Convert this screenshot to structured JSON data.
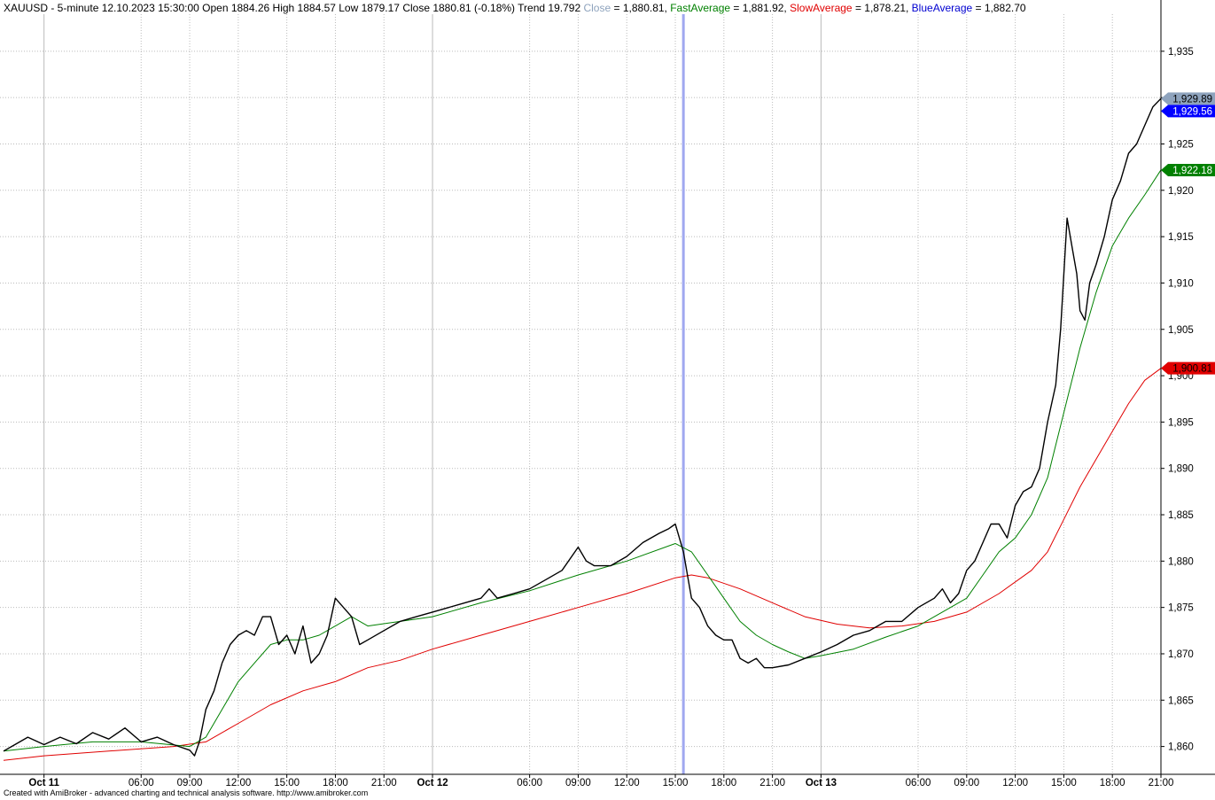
{
  "header": {
    "title": "XAUUSD - 5-minute 12.10.2023 15:30:00 Open 1884.26 High 1884.57 Low 1879.17 Close 1880.81 (-0.18%) Trend 19.792",
    "items": [
      {
        "label": "Close",
        "value": " = 1,880.81, ",
        "color": "#8ea3bd"
      },
      {
        "label": "FastAverage",
        "value": " = 1,881.92, ",
        "color": "#008000"
      },
      {
        "label": "SlowAverage",
        "value": " = 1,878.21, ",
        "color": "#e00000"
      },
      {
        "label": "BlueAverage",
        "value": " = 1,882.70",
        "color": "#0000d0"
      }
    ]
  },
  "footer": "Created with AmiBroker - advanced charting and technical analysis software. http://www.amibroker.com",
  "colors": {
    "price": "#000000",
    "fast": "#008000",
    "slow": "#e00000",
    "blue": "#0000ff",
    "cursor": "#a0a8f0",
    "grid": "#bbbbbb"
  },
  "chart_data": {
    "type": "line",
    "title": "XAUUSD - 5-minute",
    "ylim": [
      1857,
      1939
    ],
    "y_ticks": [
      {
        "value": 1860,
        "label": "1,860"
      },
      {
        "value": 1865,
        "label": "1,865"
      },
      {
        "value": 1870,
        "label": "1,870"
      },
      {
        "value": 1875,
        "label": "1,875"
      },
      {
        "value": 1880,
        "label": "1,880"
      },
      {
        "value": 1885,
        "label": "1,885"
      },
      {
        "value": 1890,
        "label": "1,890"
      },
      {
        "value": 1895,
        "label": "1,895"
      },
      {
        "value": 1900,
        "label": "1,900"
      },
      {
        "value": 1905,
        "label": "1,905"
      },
      {
        "value": 1910,
        "label": "1,910"
      },
      {
        "value": 1915,
        "label": "1,915"
      },
      {
        "value": 1920,
        "label": "1,920"
      },
      {
        "value": 1925,
        "label": "1,925"
      },
      {
        "value": 1930,
        "label": "1,930"
      },
      {
        "value": 1935,
        "label": "1,935"
      }
    ],
    "x_ticks": [
      {
        "hour": 0,
        "label": "Oct 11",
        "bold": true
      },
      {
        "hour": 6,
        "label": "06:00",
        "bold": false
      },
      {
        "hour": 9,
        "label": "09:00",
        "bold": false
      },
      {
        "hour": 12,
        "label": "12:00",
        "bold": false
      },
      {
        "hour": 15,
        "label": "15:00",
        "bold": false
      },
      {
        "hour": 18,
        "label": "18:00",
        "bold": false
      },
      {
        "hour": 21,
        "label": "21:00",
        "bold": false
      },
      {
        "hour": 24,
        "label": "Oct 12",
        "bold": true
      },
      {
        "hour": 30,
        "label": "06:00",
        "bold": false
      },
      {
        "hour": 33,
        "label": "09:00",
        "bold": false
      },
      {
        "hour": 36,
        "label": "12:00",
        "bold": false
      },
      {
        "hour": 39,
        "label": "15:00",
        "bold": false
      },
      {
        "hour": 42,
        "label": "18:00",
        "bold": false
      },
      {
        "hour": 45,
        "label": "21:00",
        "bold": false
      },
      {
        "hour": 48,
        "label": "Oct 13",
        "bold": true
      },
      {
        "hour": 54,
        "label": "06:00",
        "bold": false
      },
      {
        "hour": 57,
        "label": "09:00",
        "bold": false
      },
      {
        "hour": 60,
        "label": "12:00",
        "bold": false
      },
      {
        "hour": 63,
        "label": "15:00",
        "bold": false
      },
      {
        "hour": 66,
        "label": "18:00",
        "bold": false
      },
      {
        "hour": 69,
        "label": "21:00",
        "bold": false
      }
    ],
    "cursor_hour": 39.5,
    "x_range_hours": [
      -2.5,
      69
    ],
    "series": [
      {
        "key": "price",
        "points": [
          [
            -2.5,
            1859.5
          ],
          [
            -2,
            1860
          ],
          [
            -1,
            1861
          ],
          [
            0,
            1860.2
          ],
          [
            1,
            1861
          ],
          [
            2,
            1860.3
          ],
          [
            3,
            1861.5
          ],
          [
            4,
            1860.8
          ],
          [
            5,
            1862
          ],
          [
            6,
            1860.5
          ],
          [
            7,
            1861
          ],
          [
            8,
            1860.2
          ],
          [
            9,
            1859.6
          ],
          [
            9.3,
            1859
          ],
          [
            9.6,
            1860.5
          ],
          [
            10,
            1864
          ],
          [
            10.5,
            1866
          ],
          [
            11,
            1869
          ],
          [
            11.5,
            1871
          ],
          [
            12,
            1872
          ],
          [
            12.5,
            1872.5
          ],
          [
            13,
            1872
          ],
          [
            13.5,
            1874
          ],
          [
            14,
            1874
          ],
          [
            14.5,
            1871
          ],
          [
            15,
            1872
          ],
          [
            15.5,
            1870
          ],
          [
            16,
            1873
          ],
          [
            16.5,
            1869
          ],
          [
            17,
            1870
          ],
          [
            17.5,
            1872
          ],
          [
            18,
            1876
          ],
          [
            18.5,
            1875
          ],
          [
            19,
            1874
          ],
          [
            19.5,
            1871
          ],
          [
            20,
            1871.5
          ],
          [
            21,
            1872.5
          ],
          [
            22,
            1873.5
          ],
          [
            23,
            1874
          ],
          [
            24,
            1874.5
          ],
          [
            25,
            1875
          ],
          [
            26,
            1875.5
          ],
          [
            27,
            1876
          ],
          [
            27.5,
            1877
          ],
          [
            28,
            1876
          ],
          [
            29,
            1876.5
          ],
          [
            30,
            1877
          ],
          [
            31,
            1878
          ],
          [
            32,
            1879
          ],
          [
            33,
            1881.5
          ],
          [
            33.5,
            1880
          ],
          [
            34,
            1879.5
          ],
          [
            35,
            1879.5
          ],
          [
            36,
            1880.5
          ],
          [
            37,
            1882
          ],
          [
            38,
            1883
          ],
          [
            38.6,
            1883.5
          ],
          [
            39,
            1884
          ],
          [
            39.5,
            1881
          ],
          [
            39.8,
            1878
          ],
          [
            40,
            1876
          ],
          [
            40.5,
            1875
          ],
          [
            41,
            1873
          ],
          [
            41.5,
            1872
          ],
          [
            42,
            1871.5
          ],
          [
            42.5,
            1871.5
          ],
          [
            43,
            1869.5
          ],
          [
            43.5,
            1869
          ],
          [
            44,
            1869.5
          ],
          [
            44.5,
            1868.5
          ],
          [
            45,
            1868.5
          ],
          [
            46,
            1868.8
          ],
          [
            47,
            1869.5
          ],
          [
            48,
            1870.2
          ],
          [
            49,
            1871
          ],
          [
            50,
            1872
          ],
          [
            51,
            1872.5
          ],
          [
            52,
            1873.5
          ],
          [
            53,
            1873.5
          ],
          [
            54,
            1875
          ],
          [
            55,
            1876
          ],
          [
            55.5,
            1877
          ],
          [
            56,
            1875.5
          ],
          [
            56.5,
            1876.5
          ],
          [
            57,
            1879
          ],
          [
            57.5,
            1880
          ],
          [
            58,
            1882
          ],
          [
            58.5,
            1884
          ],
          [
            59,
            1884
          ],
          [
            59.5,
            1882.5
          ],
          [
            60,
            1886
          ],
          [
            60.5,
            1887.5
          ],
          [
            61,
            1888
          ],
          [
            61.5,
            1890
          ],
          [
            62,
            1895
          ],
          [
            62.5,
            1899
          ],
          [
            62.8,
            1905
          ],
          [
            63.2,
            1917
          ],
          [
            63.5,
            1914
          ],
          [
            63.8,
            1911
          ],
          [
            64,
            1907
          ],
          [
            64.3,
            1906
          ],
          [
            64.6,
            1910
          ],
          [
            65,
            1912
          ],
          [
            65.5,
            1915
          ],
          [
            66,
            1919
          ],
          [
            66.5,
            1921
          ],
          [
            67,
            1924
          ],
          [
            67.5,
            1925
          ],
          [
            68,
            1927
          ],
          [
            68.5,
            1929
          ],
          [
            69,
            1929.9
          ]
        ]
      },
      {
        "key": "fast",
        "points": [
          [
            -2.5,
            1859.5
          ],
          [
            0,
            1860
          ],
          [
            3,
            1860.5
          ],
          [
            6,
            1860.5
          ],
          [
            9,
            1860
          ],
          [
            10,
            1861
          ],
          [
            11,
            1864
          ],
          [
            12,
            1867
          ],
          [
            13,
            1869
          ],
          [
            14,
            1871
          ],
          [
            15,
            1871.5
          ],
          [
            16,
            1871.5
          ],
          [
            17,
            1872
          ],
          [
            18,
            1873
          ],
          [
            19,
            1874
          ],
          [
            20,
            1873
          ],
          [
            22,
            1873.5
          ],
          [
            24,
            1874
          ],
          [
            27,
            1875.5
          ],
          [
            30,
            1876.8
          ],
          [
            33,
            1878.5
          ],
          [
            36,
            1880
          ],
          [
            39,
            1881.9
          ],
          [
            40,
            1881
          ],
          [
            41,
            1878.5
          ],
          [
            42,
            1876
          ],
          [
            43,
            1873.5
          ],
          [
            44,
            1872
          ],
          [
            45,
            1871
          ],
          [
            46,
            1870.2
          ],
          [
            47,
            1869.5
          ],
          [
            48,
            1869.8
          ],
          [
            50,
            1870.5
          ],
          [
            52,
            1871.8
          ],
          [
            54,
            1873
          ],
          [
            55,
            1874
          ],
          [
            56,
            1875
          ],
          [
            57,
            1876
          ],
          [
            58,
            1878.5
          ],
          [
            59,
            1881
          ],
          [
            60,
            1882.5
          ],
          [
            61,
            1885
          ],
          [
            62,
            1889
          ],
          [
            63,
            1896
          ],
          [
            64,
            1903
          ],
          [
            65,
            1909
          ],
          [
            66,
            1914
          ],
          [
            67,
            1917
          ],
          [
            68,
            1919.5
          ],
          [
            69,
            1922.2
          ]
        ]
      },
      {
        "key": "slow",
        "points": [
          [
            -2.5,
            1858.5
          ],
          [
            0,
            1859
          ],
          [
            4,
            1859.5
          ],
          [
            8,
            1860
          ],
          [
            10,
            1860.5
          ],
          [
            12,
            1862.5
          ],
          [
            14,
            1864.5
          ],
          [
            16,
            1866
          ],
          [
            18,
            1867
          ],
          [
            20,
            1868.5
          ],
          [
            22,
            1869.3
          ],
          [
            24,
            1870.5
          ],
          [
            27,
            1872
          ],
          [
            30,
            1873.5
          ],
          [
            33,
            1875
          ],
          [
            36,
            1876.5
          ],
          [
            39,
            1878.2
          ],
          [
            40,
            1878.5
          ],
          [
            41,
            1878.2
          ],
          [
            43,
            1877
          ],
          [
            45,
            1875.5
          ],
          [
            47,
            1874
          ],
          [
            49,
            1873.2
          ],
          [
            51,
            1872.8
          ],
          [
            53,
            1873
          ],
          [
            55,
            1873.5
          ],
          [
            57,
            1874.5
          ],
          [
            59,
            1876.5
          ],
          [
            61,
            1879
          ],
          [
            62,
            1881
          ],
          [
            63,
            1884.5
          ],
          [
            64,
            1888
          ],
          [
            65,
            1891
          ],
          [
            66,
            1894
          ],
          [
            67,
            1897
          ],
          [
            68,
            1899.5
          ],
          [
            69,
            1900.8
          ]
        ]
      }
    ],
    "last_values": [
      {
        "key": "close",
        "value": 1929.89,
        "label": "1,929.89",
        "bg": "#8ea3bd",
        "fg": "#000000"
      },
      {
        "key": "blue",
        "value": 1929.56,
        "label": "1,929.56",
        "bg": "#0000ff",
        "fg": "#ffffff"
      },
      {
        "key": "fast",
        "value": 1922.18,
        "label": "1,922.18",
        "bg": "#008000",
        "fg": "#ffffff"
      },
      {
        "key": "slow",
        "value": 1900.81,
        "label": "1,900.81",
        "bg": "#e00000",
        "fg": "#000000"
      }
    ]
  }
}
